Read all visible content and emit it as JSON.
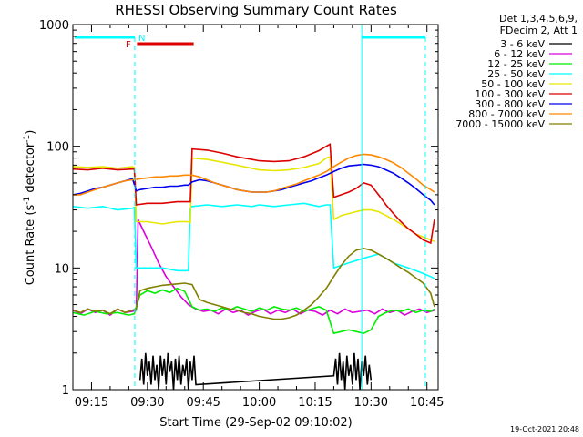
{
  "chart_data": {
    "type": "line",
    "title": "RHESSI Observing Summary Count Rates",
    "xlabel": "Start Time (29-Sep-02 09:10:02)",
    "ylabel_pre": "Count Rate (s",
    "ylabel_sup": "-1",
    "ylabel_mid": " detector",
    "ylabel_sup2": "-1",
    "ylabel_post": ")",
    "yscale": "log",
    "ylim": [
      1,
      1000
    ],
    "xlim_minutes": [
      0,
      98
    ],
    "x_tick_labels": [
      "09:15",
      "09:30",
      "09:45",
      "10:00",
      "10:15",
      "10:30",
      "10:45"
    ],
    "y_tick_labels": [
      "1",
      "10",
      "100",
      "1000"
    ],
    "legend_header": [
      "Det 1,3,4,5,6,9,",
      "FDecim 2, Att 1"
    ],
    "legend_position": "right",
    "series": [
      {
        "name": "3 - 6 keV",
        "color": "#000000",
        "x": [
          18,
          18.5,
          19,
          19.5,
          20,
          20.5,
          21,
          21.5,
          22,
          22.5,
          23,
          23.5,
          24,
          24.5,
          25,
          25.5,
          26,
          26.5,
          27,
          27.5,
          28,
          28.5,
          29,
          29.5,
          30,
          30.5,
          31,
          31.5,
          32,
          32.5,
          33,
          70,
          70.5,
          71,
          71.5,
          72,
          72.5,
          73,
          73.5,
          74,
          74.5,
          75,
          75.5,
          76,
          76.5,
          77,
          77.5,
          78,
          78.5,
          79,
          79.5,
          80
        ],
        "y": [
          1.2,
          1.8,
          1.1,
          2.0,
          1.3,
          1.7,
          1.1,
          1.9,
          1.2,
          1.6,
          1.0,
          1.9,
          1.3,
          1.8,
          1.1,
          2.0,
          1.4,
          1.7,
          1.0,
          1.8,
          1.2,
          1.9,
          1.1,
          1.6,
          1.3,
          1.8,
          1.0,
          1.7,
          1.2,
          1.9,
          1.1,
          1.3,
          1.8,
          1.1,
          2.0,
          1.2,
          1.7,
          1.0,
          1.9,
          1.3,
          1.6,
          1.1,
          2.0,
          1.2,
          1.8,
          1.0,
          1.7,
          1.3,
          1.9,
          1.1,
          1.6,
          1.2
        ]
      },
      {
        "name": "6 - 12 keV",
        "color": "#dd00dd",
        "x": [
          0,
          2,
          4,
          6,
          8,
          10,
          12,
          14,
          16,
          17,
          17.5,
          19,
          21,
          23,
          25,
          27,
          29,
          31,
          33,
          35,
          37,
          39,
          41,
          43,
          45,
          47,
          49,
          51,
          53,
          55,
          57,
          59,
          61,
          63,
          65,
          67,
          69,
          71,
          73,
          75,
          77,
          79,
          81,
          83,
          85,
          87,
          89,
          91,
          93,
          95,
          97
        ],
        "y": [
          4.5,
          4.2,
          4.6,
          4.3,
          4.5,
          4.1,
          4.6,
          4.3,
          4.4,
          4.5,
          25,
          20,
          15,
          11,
          8.5,
          7,
          5.8,
          5.0,
          4.6,
          4.4,
          4.5,
          4.2,
          4.6,
          4.3,
          4.5,
          4.1,
          4.4,
          4.6,
          4.2,
          4.5,
          4.3,
          4.6,
          4.2,
          4.5,
          4.4,
          4.1,
          4.5,
          4.2,
          4.6,
          4.3,
          4.4,
          4.5,
          4.2,
          4.6,
          4.3,
          4.5,
          4.1,
          4.4,
          4.6,
          4.3,
          4.5
        ]
      },
      {
        "name": "12 - 25 keV",
        "color": "#00ee00",
        "x": [
          0,
          3,
          6,
          9,
          12,
          15,
          16.5,
          17,
          18,
          20,
          22,
          24,
          26,
          28,
          30,
          32,
          34,
          36,
          38,
          40,
          42,
          44,
          46,
          48,
          50,
          52,
          54,
          56,
          58,
          60,
          62,
          64,
          66,
          68,
          70,
          72,
          74,
          76,
          78,
          80,
          82,
          84,
          86,
          88,
          90,
          92,
          94,
          96,
          97
        ],
        "y": [
          4.3,
          4.1,
          4.4,
          4.2,
          4.3,
          4.1,
          4.2,
          4.8,
          6.0,
          6.5,
          6.2,
          6.6,
          6.3,
          6.8,
          6.4,
          4.8,
          4.5,
          4.6,
          4.4,
          4.7,
          4.5,
          4.8,
          4.6,
          4.4,
          4.7,
          4.5,
          4.8,
          4.6,
          4.5,
          4.7,
          4.4,
          4.6,
          4.8,
          4.5,
          2.9,
          3.0,
          3.1,
          3.0,
          2.9,
          3.1,
          4.0,
          4.3,
          4.5,
          4.4,
          4.6,
          4.3,
          4.5,
          4.4,
          4.6
        ]
      },
      {
        "name": "25 - 50 keV",
        "color": "#00ffff",
        "x": [
          0,
          4,
          8,
          12,
          16,
          16.5,
          17,
          20,
          24,
          28,
          31,
          31.5,
          32,
          36,
          40,
          44,
          48,
          50,
          54,
          58,
          62,
          66,
          68,
          69,
          70,
          72,
          74,
          76,
          78,
          80,
          82,
          84,
          86,
          88,
          90,
          92,
          94,
          96,
          97
        ],
        "y": [
          32,
          31,
          32,
          30,
          31,
          31.5,
          10,
          10,
          10,
          9.5,
          9.5,
          31,
          32,
          33,
          32,
          33,
          32,
          33,
          32,
          33,
          34,
          32,
          33,
          33,
          10,
          10.5,
          11,
          11.5,
          12,
          12.5,
          13,
          12,
          11,
          10.5,
          10,
          9.5,
          9,
          8.5,
          8.2
        ]
      },
      {
        "name": "50 - 100 keV",
        "color": "#e6e600",
        "x": [
          0,
          4,
          8,
          12,
          16,
          16.5,
          17,
          20,
          24,
          28,
          31,
          31.5,
          32,
          36,
          40,
          44,
          48,
          50,
          54,
          58,
          62,
          66,
          68,
          69,
          70,
          72,
          74,
          76,
          78,
          80,
          82,
          84,
          86,
          88,
          90,
          92,
          94,
          96,
          97
        ],
        "y": [
          68,
          67,
          68,
          66,
          68,
          67,
          24,
          24,
          23,
          24,
          24,
          23.5,
          80,
          78,
          74,
          70,
          66,
          64,
          63,
          64,
          67,
          72,
          80,
          82,
          25,
          27,
          28,
          29,
          30,
          30,
          29,
          27,
          25,
          23,
          21,
          19,
          18,
          17,
          16.5
        ]
      },
      {
        "name": "100 - 300 keV",
        "color": "#dd0000",
        "x": [
          0,
          4,
          8,
          12,
          16,
          16.5,
          17,
          20,
          24,
          28,
          31,
          31.5,
          32,
          36,
          40,
          44,
          48,
          50,
          54,
          58,
          62,
          66,
          68,
          69,
          70,
          72,
          74,
          76,
          78,
          80,
          82,
          84,
          86,
          88,
          90,
          92,
          94,
          96,
          97
        ],
        "y": [
          65,
          64,
          66,
          64,
          65,
          65,
          33,
          34,
          34,
          35,
          35,
          35,
          95,
          93,
          88,
          82,
          78,
          76,
          75,
          76,
          82,
          92,
          100,
          104,
          38,
          40,
          42,
          45,
          50,
          48,
          40,
          33,
          28,
          24,
          21,
          19,
          17,
          16,
          25
        ]
      },
      {
        "name": "300 - 800 keV",
        "color": "#0000ee",
        "x": [
          0,
          2,
          4,
          6,
          8,
          10,
          12,
          14,
          16,
          17,
          18,
          20,
          22,
          24,
          26,
          28,
          30,
          31,
          32,
          34,
          36,
          38,
          40,
          42,
          44,
          46,
          48,
          50,
          52,
          54,
          56,
          58,
          60,
          62,
          64,
          66,
          68,
          70,
          72,
          74,
          76,
          78,
          80,
          82,
          84,
          86,
          88,
          90,
          92,
          94,
          96,
          97
        ],
        "y": [
          40,
          41,
          43,
          45,
          46,
          48,
          50,
          52,
          54,
          43,
          44,
          45,
          46,
          46,
          47,
          47,
          48,
          48,
          51,
          53,
          52,
          50,
          48,
          46,
          44,
          43,
          42,
          42,
          42,
          43,
          44,
          46,
          48,
          50,
          52,
          55,
          58,
          62,
          66,
          69,
          70,
          71,
          70,
          68,
          64,
          60,
          55,
          50,
          45,
          40,
          36,
          33
        ]
      },
      {
        "name": "800 - 7000 keV",
        "color": "#ff8800",
        "x": [
          0,
          2,
          4,
          6,
          8,
          10,
          12,
          14,
          16,
          18,
          20,
          22,
          24,
          26,
          28,
          30,
          32,
          34,
          36,
          38,
          40,
          42,
          44,
          46,
          48,
          50,
          52,
          54,
          56,
          58,
          60,
          62,
          64,
          66,
          68,
          70,
          72,
          74,
          76,
          78,
          80,
          82,
          84,
          86,
          88,
          90,
          92,
          94,
          96,
          97
        ],
        "y": [
          40,
          40,
          42,
          44,
          46,
          48,
          50,
          52,
          53,
          54,
          55,
          56,
          56,
          57,
          57,
          58,
          58,
          56,
          53,
          50,
          48,
          46,
          44,
          43,
          42,
          42,
          42,
          43,
          45,
          47,
          49,
          52,
          55,
          58,
          62,
          68,
          74,
          80,
          84,
          86,
          85,
          82,
          78,
          73,
          67,
          60,
          54,
          48,
          44,
          42
        ]
      },
      {
        "name": "7000 - 15000 keV",
        "color": "#808000",
        "x": [
          0,
          2,
          4,
          6,
          8,
          10,
          12,
          14,
          16,
          17,
          18,
          20,
          22,
          24,
          26,
          28,
          30,
          32,
          34,
          36,
          38,
          40,
          42,
          44,
          46,
          48,
          50,
          52,
          54,
          56,
          58,
          60,
          62,
          64,
          66,
          68,
          70,
          72,
          74,
          76,
          78,
          80,
          82,
          84,
          86,
          88,
          90,
          92,
          94,
          96,
          97
        ],
        "y": [
          4.5,
          4.3,
          4.6,
          4.4,
          4.5,
          4.2,
          4.6,
          4.3,
          4.5,
          4.6,
          6.5,
          6.8,
          7.0,
          7.2,
          7.3,
          7.4,
          7.5,
          7.3,
          5.5,
          5.2,
          5.0,
          4.8,
          4.6,
          4.5,
          4.3,
          4.2,
          4.0,
          3.9,
          3.8,
          3.8,
          3.9,
          4.1,
          4.5,
          5.0,
          5.8,
          6.8,
          8.5,
          10.5,
          12.5,
          14,
          14.5,
          14,
          13,
          12,
          11,
          10,
          9.2,
          8.3,
          7.5,
          6.2,
          4.8
        ]
      }
    ],
    "annotations": [
      {
        "text": "N",
        "color": "#00ffff"
      },
      {
        "text": "F",
        "color": "#dd0000"
      }
    ],
    "stamp": "19-Oct-2021 20:48"
  }
}
